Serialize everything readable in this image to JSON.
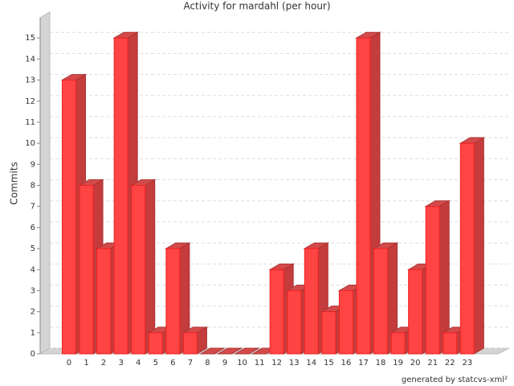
{
  "chart_data": {
    "type": "bar3d",
    "title": "Activity for mardahl (per hour)",
    "y_label": "Commits",
    "footer": "generated by statcvs-xml²",
    "categories": [
      "0",
      "1",
      "2",
      "3",
      "4",
      "5",
      "6",
      "7",
      "8",
      "9",
      "10",
      "11",
      "12",
      "13",
      "14",
      "15",
      "16",
      "17",
      "18",
      "19",
      "20",
      "21",
      "22",
      "23"
    ],
    "values": [
      13,
      8,
      5,
      15,
      8,
      1,
      5,
      1,
      0,
      0,
      0,
      0,
      4,
      3,
      5,
      2,
      3,
      15,
      5,
      1,
      4,
      7,
      1,
      10
    ],
    "color": "#ff4444",
    "ylim": [
      0,
      16
    ],
    "yticks": [
      0,
      1,
      2,
      3,
      4,
      5,
      6,
      7,
      8,
      9,
      10,
      11,
      12,
      13,
      14,
      15
    ],
    "grid": true
  }
}
